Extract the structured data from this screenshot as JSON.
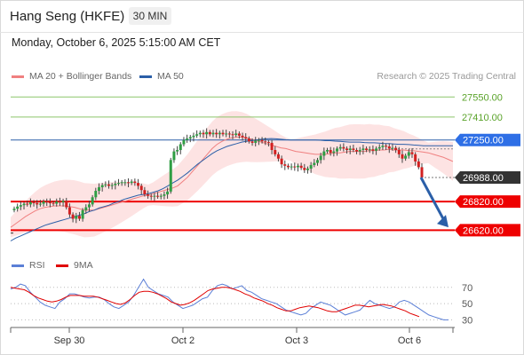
{
  "header": {
    "title": "Hang Seng (HKFE)",
    "timeframe": "30 MIN",
    "datetime": "Monday, October 6, 2025 5:15:00 AM CET",
    "credit": "Research © 2025 Trading Central"
  },
  "legend": {
    "ma20": {
      "label": "MA 20 + Bollinger Bands",
      "color": "#f08080"
    },
    "ma50": {
      "label": "MA 50",
      "color": "#2b5fa8"
    },
    "rsi": {
      "label": "RSI",
      "color": "#5b7fd6"
    },
    "rsi_ma": {
      "label": "9MA",
      "color": "#e00000"
    }
  },
  "chart_data": [
    {
      "type": "candlestick",
      "x_labels": [
        "Sep 30",
        "Oct 2",
        "Oct 3",
        "Oct 6"
      ],
      "ylim": [
        26480,
        27620
      ],
      "levels": [
        {
          "label": "27550.00",
          "value": 27550,
          "kind": "resistance"
        },
        {
          "label": "27410.00",
          "value": 27410,
          "kind": "resistance"
        },
        {
          "label": "27250.00",
          "value": 27250,
          "kind": "pivot"
        },
        {
          "label": "26988.00",
          "value": 26988,
          "kind": "last"
        },
        {
          "label": "26820.00",
          "value": 26820,
          "kind": "support"
        },
        {
          "label": "26620.00",
          "value": 26620,
          "kind": "support"
        }
      ],
      "closes": [
        26770,
        26785,
        26795,
        26805,
        26800,
        26815,
        26810,
        26800,
        26805,
        26820,
        26815,
        26810,
        26805,
        26820,
        26815,
        26825,
        26780,
        26730,
        26700,
        26720,
        26700,
        26760,
        26780,
        26800,
        26850,
        26895,
        26920,
        26935,
        26940,
        26930,
        26935,
        26945,
        26950,
        26955,
        26955,
        26950,
        26960,
        26950,
        26930,
        26900,
        26870,
        26860,
        26855,
        26860,
        26855,
        26860,
        26870,
        26890,
        27110,
        27170,
        27180,
        27220,
        27250,
        27260,
        27270,
        27280,
        27290,
        27300,
        27290,
        27305,
        27290,
        27300,
        27290,
        27300,
        27290,
        27295,
        27290,
        27285,
        27295,
        27280,
        27270,
        27260,
        27240,
        27230,
        27245,
        27250,
        27240,
        27235,
        27230,
        27180,
        27150,
        27120,
        27080,
        27070,
        27060,
        27065,
        27060,
        27070,
        27055,
        27040,
        27050,
        27075,
        27090,
        27110,
        27140,
        27170,
        27180,
        27160,
        27170,
        27190,
        27200,
        27190,
        27180,
        27190,
        27180,
        27170,
        27180,
        27190,
        27180,
        27185,
        27175,
        27190,
        27200,
        27210,
        27205,
        27190,
        27195,
        27180,
        27150,
        27120,
        27140,
        27165,
        27150,
        27100,
        27060,
        26988
      ],
      "ma20": [
        26640,
        26665,
        26690,
        26715,
        26735,
        26755,
        26770,
        26780,
        26785,
        26790,
        26790,
        26790,
        26785,
        26780,
        26770,
        26760,
        26760,
        26760,
        26770,
        26780,
        26790,
        26800,
        26810,
        26820,
        26830,
        26840,
        26850,
        26860,
        26865,
        26875,
        26885,
        26895,
        26905,
        26915,
        26930,
        26960,
        26990,
        27030,
        27070,
        27110,
        27150,
        27190,
        27220,
        27240,
        27255,
        27265,
        27270,
        27270,
        27265,
        27255,
        27245,
        27235,
        27225,
        27215,
        27205,
        27195,
        27190,
        27180,
        27170,
        27165,
        27160,
        27155,
        27150,
        27150,
        27150,
        27155,
        27160,
        27160,
        27165,
        27170,
        27170,
        27170,
        27170,
        27175,
        27175,
        27180,
        27180,
        27185,
        27180,
        27180,
        27180,
        27175,
        27175,
        27170,
        27165,
        27160,
        27150,
        27140,
        27130,
        27115,
        27100
      ],
      "ma50": [
        26545,
        26565,
        26580,
        26595,
        26610,
        26625,
        26640,
        26655,
        26665,
        26675,
        26685,
        26695,
        26705,
        26715,
        26725,
        26735,
        26750,
        26760,
        26775,
        26785,
        26795,
        26810,
        26820,
        26835,
        26845,
        26855,
        26865,
        26870,
        26875,
        26885,
        26895,
        26910,
        26930,
        26950,
        26970,
        26995,
        27020,
        27050,
        27080,
        27105,
        27130,
        27155,
        27175,
        27190,
        27205,
        27215,
        27225,
        27235,
        27240,
        27245,
        27250,
        27255,
        27258,
        27260,
        27258,
        27255,
        27252,
        27250,
        27250,
        27250,
        27250,
        27250,
        27250,
        27248,
        27245,
        27245,
        27242,
        27240,
        27238,
        27235,
        27235,
        27235,
        27232,
        27230,
        27230,
        27228,
        27225,
        27225,
        27222,
        27220,
        27220,
        27218,
        27215,
        27213,
        27210,
        27210,
        27210,
        27210,
        27210,
        27210,
        27210
      ]
    },
    {
      "type": "line",
      "name": "RSI",
      "ylim": [
        25,
        85
      ],
      "y_ticks": [
        70,
        50,
        30
      ]
    }
  ]
}
